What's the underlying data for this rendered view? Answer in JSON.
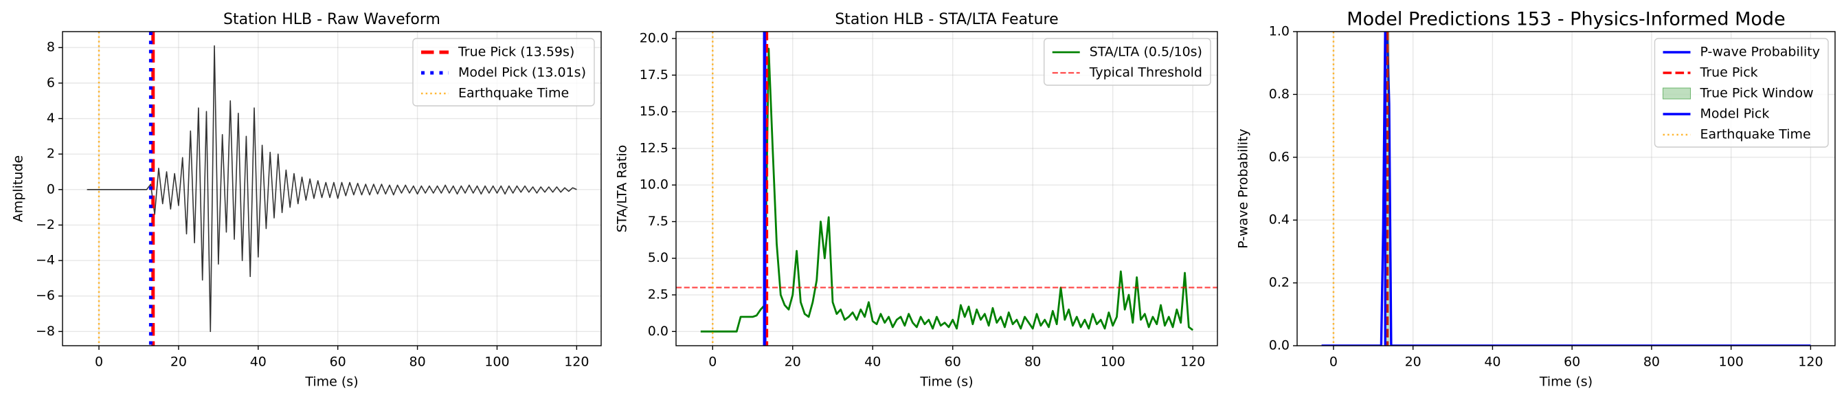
{
  "chart_data": [
    {
      "type": "line",
      "title": "Station HLB - Raw Waveform",
      "xlabel": "Time (s)",
      "ylabel": "Amplitude",
      "xlim": [
        -9.15,
        126.15
      ],
      "xticks": [
        0,
        20,
        40,
        60,
        80,
        100,
        120
      ],
      "ylim": [
        -8.8,
        8.9
      ],
      "yticks": [
        {
          "value": -8,
          "label": "−8"
        },
        {
          "value": -6,
          "label": "−6"
        },
        {
          "value": -4,
          "label": "−4"
        },
        {
          "value": -2,
          "label": "−2"
        },
        0,
        2,
        4,
        6,
        8
      ],
      "grid": true,
      "legend": "upper right",
      "series": [
        {
          "kind": "line",
          "color": "#000000",
          "alpha": 0.8,
          "width": 1.6,
          "x": [
            -3,
            -2,
            -1,
            0,
            1,
            2,
            3,
            4,
            5,
            6,
            7,
            8,
            9,
            10,
            11,
            12,
            13,
            14,
            15,
            16,
            17,
            18,
            19,
            20,
            21,
            22,
            23,
            24,
            25,
            26,
            27,
            28,
            29,
            30,
            31,
            32,
            33,
            34,
            35,
            36,
            37,
            38,
            39,
            40,
            41,
            42,
            43,
            44,
            45,
            46,
            47,
            48,
            49,
            50,
            51,
            52,
            53,
            54,
            55,
            56,
            57,
            58,
            59,
            60,
            61,
            62,
            63,
            64,
            65,
            66,
            67,
            68,
            69,
            70,
            71,
            72,
            73,
            74,
            75,
            76,
            77,
            78,
            79,
            80,
            81,
            82,
            83,
            84,
            85,
            86,
            87,
            88,
            89,
            90,
            91,
            92,
            93,
            94,
            95,
            96,
            97,
            98,
            99,
            100,
            101,
            102,
            103,
            104,
            105,
            106,
            107,
            108,
            109,
            110,
            111,
            112,
            113,
            114,
            115,
            116,
            117,
            118,
            119,
            120
          ],
          "values": [
            0,
            0,
            0,
            0,
            0,
            0,
            0,
            0,
            0,
            0,
            0,
            0,
            0,
            0,
            0,
            0,
            0.3,
            -1.4,
            1.2,
            -0.8,
            1.0,
            -1.1,
            0.9,
            -0.9,
            1.8,
            -2.5,
            3.3,
            -3.0,
            4.6,
            -5.1,
            4.4,
            -8.0,
            8.1,
            -4.2,
            3.1,
            -2.4,
            5.0,
            -2.8,
            4.3,
            -4.0,
            3.0,
            -4.9,
            4.6,
            -3.8,
            2.5,
            -2.2,
            2.1,
            -1.6,
            2.0,
            -1.3,
            1.1,
            -1.0,
            0.9,
            -0.8,
            0.7,
            -0.6,
            0.6,
            -0.5,
            0.5,
            -0.45,
            0.4,
            -0.45,
            0.4,
            -0.5,
            0.4,
            -0.35,
            0.4,
            -0.3,
            0.35,
            -0.3,
            0.3,
            -0.3,
            0.3,
            -0.25,
            0.3,
            -0.25,
            0.25,
            -0.3,
            0.25,
            -0.2,
            0.25,
            -0.2,
            0.2,
            -0.25,
            0.2,
            -0.2,
            0.2,
            -0.2,
            0.2,
            -0.2,
            0.25,
            -0.2,
            0.2,
            -0.25,
            0.2,
            -0.2,
            0.25,
            -0.2,
            0.2,
            -0.25,
            0.2,
            -0.2,
            0.2,
            -0.2,
            0.2,
            -0.25,
            0.2,
            -0.2,
            0.2,
            -0.15,
            0.2,
            -0.15,
            0.15,
            -0.2,
            0.15,
            -0.15,
            0.15,
            -0.15,
            0.15,
            -0.15,
            0.1,
            -0.1,
            0.1,
            0
          ]
        },
        {
          "kind": "vline",
          "name": "True Pick (13.59s)",
          "x": 13.59,
          "color": "#ff0000",
          "dash": "dashed",
          "width": 5
        },
        {
          "kind": "vline",
          "name": "Model Pick (13.01s)",
          "x": 13.01,
          "color": "#0000ff",
          "dash": "dotted",
          "width": 5
        },
        {
          "kind": "vline",
          "name": "Earthquake Time",
          "x": 0,
          "color": "#ffa500",
          "dash": "dotted",
          "width": 2.5,
          "alpha": 0.8
        }
      ]
    },
    {
      "type": "line",
      "title": "Station HLB - STA/LTA Feature",
      "xlabel": "Time (s)",
      "ylabel": "STA/LTA Ratio",
      "xlim": [
        -9.15,
        126.15
      ],
      "xticks": [
        0,
        20,
        40,
        60,
        80,
        100,
        120
      ],
      "ylim": [
        -0.97,
        20.47
      ],
      "yticks": [
        {
          "value": 0,
          "label": "0.0"
        },
        {
          "value": 2.5,
          "label": "2.5"
        },
        {
          "value": 5,
          "label": "5.0"
        },
        {
          "value": 7.5,
          "label": "7.5"
        },
        {
          "value": 10,
          "label": "10.0"
        },
        {
          "value": 12.5,
          "label": "12.5"
        },
        {
          "value": 15,
          "label": "15.0"
        },
        {
          "value": 17.5,
          "label": "17.5"
        },
        {
          "value": 20,
          "label": "20.0"
        }
      ],
      "grid": true,
      "legend": "upper right",
      "series": [
        {
          "kind": "line",
          "name": "STA/LTA (0.5/10s)",
          "color": "#008000",
          "width": 2.8,
          "x": [
            -3,
            -2,
            -1,
            0,
            1,
            2,
            3,
            4,
            5,
            6,
            7,
            8,
            9,
            10,
            11,
            12,
            13,
            14,
            15,
            16,
            17,
            18,
            19,
            20,
            21,
            22,
            23,
            24,
            25,
            26,
            27,
            28,
            29,
            30,
            31,
            32,
            33,
            34,
            35,
            36,
            37,
            38,
            39,
            40,
            41,
            42,
            43,
            44,
            45,
            46,
            47,
            48,
            49,
            50,
            51,
            52,
            53,
            54,
            55,
            56,
            57,
            58,
            59,
            60,
            61,
            62,
            63,
            64,
            65,
            66,
            67,
            68,
            69,
            70,
            71,
            72,
            73,
            74,
            75,
            76,
            77,
            78,
            79,
            80,
            81,
            82,
            83,
            84,
            85,
            86,
            87,
            88,
            89,
            90,
            91,
            92,
            93,
            94,
            95,
            96,
            97,
            98,
            99,
            100,
            101,
            102,
            103,
            104,
            105,
            106,
            107,
            108,
            109,
            110,
            111,
            112,
            113,
            114,
            115,
            116,
            117,
            118,
            119,
            120
          ],
          "values": [
            0,
            0,
            0,
            0,
            0,
            0,
            0,
            0,
            0,
            0,
            1.0,
            1.0,
            1.0,
            1.0,
            1.1,
            1.5,
            1.8,
            19.3,
            12.5,
            6.0,
            2.5,
            1.8,
            1.5,
            2.5,
            5.5,
            2.0,
            1.2,
            1.0,
            2.0,
            3.5,
            7.5,
            5.0,
            7.8,
            2.0,
            1.2,
            1.5,
            0.8,
            1.0,
            1.3,
            0.8,
            1.5,
            1.0,
            2.0,
            0.7,
            0.5,
            1.2,
            0.6,
            1.0,
            0.3,
            0.8,
            1.0,
            0.4,
            1.2,
            0.6,
            0.3,
            1.0,
            0.5,
            0.8,
            0.2,
            1.0,
            0.4,
            0.6,
            0.3,
            0.8,
            0.2,
            1.8,
            1.0,
            1.7,
            0.5,
            1.5,
            0.8,
            1.2,
            0.4,
            1.6,
            0.6,
            1.0,
            0.3,
            1.3,
            0.5,
            0.8,
            0.2,
            1.0,
            0.6,
            0.2,
            1.2,
            0.4,
            0.8,
            0.3,
            1.4,
            0.5,
            3.0,
            0.8,
            1.5,
            0.4,
            1.0,
            0.3,
            0.8,
            0.2,
            1.2,
            0.5,
            0.8,
            0.2,
            1.3,
            0.4,
            1.0,
            4.1,
            1.5,
            2.5,
            0.6,
            3.7,
            0.8,
            1.2,
            0.3,
            1.0,
            0.5,
            1.8,
            0.4,
            1.0,
            0.3,
            1.5,
            0.6,
            4.0,
            0.3,
            0.1
          ]
        },
        {
          "kind": "hline",
          "name": "Typical Threshold",
          "y": 3,
          "color": "#ff0000",
          "dash": "dashed",
          "width": 2.2,
          "alpha": 0.7
        },
        {
          "kind": "vline",
          "x": 13.01,
          "color": "#0000ff",
          "width": 5
        },
        {
          "kind": "vline",
          "x": 13.59,
          "color": "#ff0000",
          "dash": "dashed",
          "width": 3.4
        },
        {
          "kind": "vline",
          "x": 0,
          "color": "#ffa500",
          "dash": "dotted",
          "width": 2.5,
          "alpha": 0.8
        }
      ]
    },
    {
      "type": "line",
      "title": "Model Predictions 153 - Physics-Informed Mode",
      "xlabel": "Time (s)",
      "ylabel": "P-wave Probability",
      "xlim": [
        -9.15,
        126.15
      ],
      "xticks": [
        0,
        20,
        40,
        60,
        80,
        100,
        120
      ],
      "ylim": [
        0,
        1
      ],
      "yticks": [
        {
          "value": 0,
          "label": "0.0"
        },
        {
          "value": 0.2,
          "label": "0.2"
        },
        {
          "value": 0.4,
          "label": "0.4"
        },
        {
          "value": 0.6,
          "label": "0.6"
        },
        {
          "value": 0.8,
          "label": "0.8"
        },
        {
          "value": 1,
          "label": "1.0"
        }
      ],
      "grid": true,
      "legend": "upper right",
      "series": [
        {
          "kind": "line",
          "name": "P-wave Probability",
          "color": "#0000ff",
          "width": 3.4,
          "x": [
            -3,
            12,
            12.5,
            13,
            13.5,
            14,
            14.5,
            120
          ],
          "values": [
            0,
            0,
            0.37,
            1,
            1,
            0.77,
            0,
            0
          ]
        },
        {
          "kind": "vline",
          "name": "True Pick",
          "x": 13.59,
          "color": "#ff0000",
          "dash": "dashed",
          "width": 3.4
        },
        {
          "kind": "span",
          "name": "True Pick Window",
          "x": [
            13.09,
            14.09
          ],
          "color": "#008000",
          "alpha": 0.25
        },
        {
          "kind": "vline",
          "name": "Model Pick",
          "x": 13.01,
          "color": "#0000ff",
          "width": 3.4
        },
        {
          "kind": "vline",
          "name": "Earthquake Time",
          "x": 0,
          "color": "#ffa500",
          "dash": "dotted",
          "width": 2.5,
          "alpha": 0.8
        }
      ]
    }
  ]
}
